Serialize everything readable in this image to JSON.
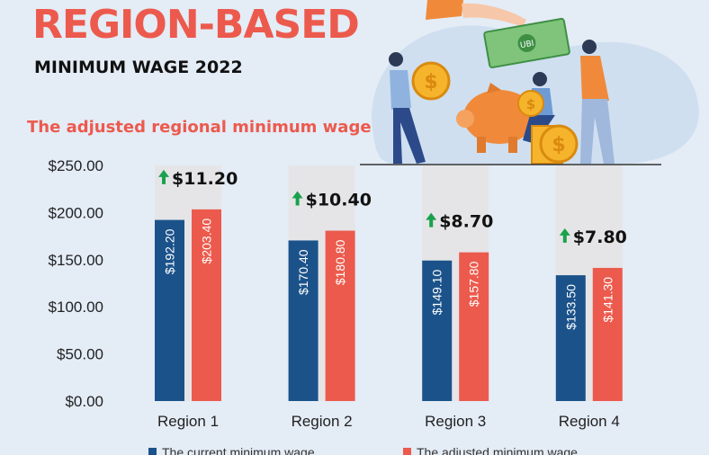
{
  "header": {
    "title": "REGION-BASED",
    "subtitle": "MINIMUM WAGE 2022",
    "chart_title": "The adjusted regional minimum wage"
  },
  "colors": {
    "current": "#1b528a",
    "adjusted": "#ec5a4d",
    "column_bg": "#e5e5e7",
    "arrow": "#1aa14c",
    "title": "#ec5a4d"
  },
  "icons": [
    "up-arrow-icon",
    "money-bill-icon",
    "piggy-bank-icon",
    "dollar-coin-icon"
  ],
  "chart_data": {
    "type": "bar",
    "categories": [
      "Region 1",
      "Region 2",
      "Region 3",
      "Region 4"
    ],
    "series": [
      {
        "name": "The current minimum wage",
        "values": [
          192.2,
          170.4,
          149.1,
          133.5
        ],
        "labels": [
          "$192.20",
          "$170.40",
          "$149.10",
          "$133.50"
        ]
      },
      {
        "name": "The adjusted minimum wage",
        "values": [
          203.4,
          180.8,
          157.8,
          141.3
        ],
        "labels": [
          "$203.40",
          "$180.80",
          "$157.80",
          "$141.30"
        ]
      }
    ],
    "increase_labels": [
      "$11.20",
      "$10.40",
      "$8.70",
      "$7.80"
    ],
    "y_ticks": [
      0,
      50,
      100,
      150,
      200,
      250
    ],
    "y_tick_labels": [
      "$0.00",
      "$50.00",
      "$100.00",
      "$150.00",
      "$200.00",
      "$250.00"
    ],
    "ylim": [
      0,
      250
    ],
    "title": "The adjusted regional minimum wage",
    "xlabel": "",
    "ylabel": "",
    "grid": false,
    "legend": "bottom"
  }
}
